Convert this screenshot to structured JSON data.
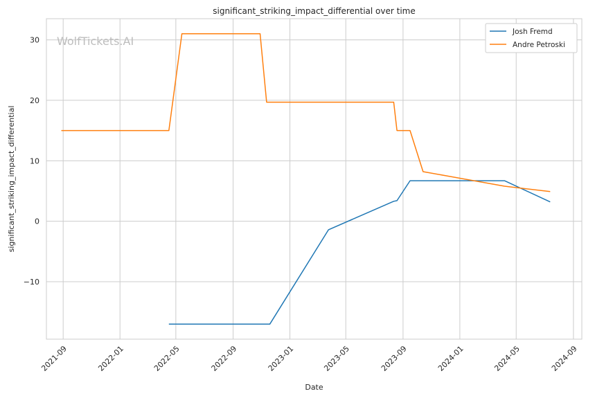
{
  "chart_data": {
    "type": "line",
    "title": "significant_striking_impact_differential over time",
    "xlabel": "Date",
    "ylabel": "significant_striking_impact_differential",
    "watermark": "WolfTickets.AI",
    "x_axis_type": "date",
    "xlim": [
      "2021-07-27",
      "2024-09-19"
    ],
    "ylim": [
      -19.5,
      33.5
    ],
    "x_ticks": [
      "2021-09",
      "2022-01",
      "2022-05",
      "2022-09",
      "2023-01",
      "2023-05",
      "2023-09",
      "2024-01",
      "2024-05",
      "2024-09"
    ],
    "y_ticks": [
      -10,
      0,
      10,
      20,
      30
    ],
    "y_tick_labels": [
      "−10",
      "0",
      "10",
      "20",
      "30"
    ],
    "grid": true,
    "legend_position": "top-right",
    "series": [
      {
        "name": "Josh Fremd",
        "color": "#1f77b4",
        "points": [
          [
            "2022-04-16",
            -17.0
          ],
          [
            "2022-11-19",
            -17.0
          ],
          [
            "2023-03-25",
            -1.4
          ],
          [
            "2023-08-12",
            3.3
          ],
          [
            "2023-08-19",
            3.4
          ],
          [
            "2023-09-16",
            6.7
          ],
          [
            "2024-04-06",
            6.7
          ],
          [
            "2024-07-13",
            3.2
          ]
        ]
      },
      {
        "name": "Andre Petroski",
        "color": "#ff7f0e",
        "points": [
          [
            "2021-08-28",
            15.0
          ],
          [
            "2022-04-16",
            15.0
          ],
          [
            "2022-05-14",
            31.0
          ],
          [
            "2022-10-29",
            31.0
          ],
          [
            "2022-11-12",
            19.7
          ],
          [
            "2023-08-12",
            19.7
          ],
          [
            "2023-08-19",
            15.0
          ],
          [
            "2023-09-16",
            15.0
          ],
          [
            "2023-10-14",
            8.2
          ],
          [
            "2024-04-06",
            5.8
          ],
          [
            "2024-07-13",
            4.9
          ]
        ]
      }
    ]
  }
}
